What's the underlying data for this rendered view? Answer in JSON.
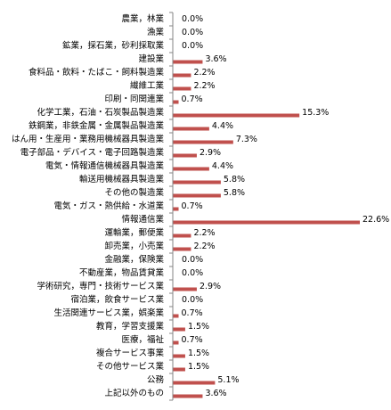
{
  "chart_data": {
    "type": "bar",
    "orientation": "horizontal",
    "categories": [
      "農業，林業",
      "漁業",
      "鉱業，採石業，砂利採取業",
      "建設業",
      "食料品・飲料・たばこ・飼料製造業",
      "繊維工業",
      "印刷・同関連業",
      "化学工業，石油・石炭製品製造業",
      "鉄鋼業，非鉄金属・金属製品製造業",
      "はん用・生産用・業務用機械器具製造業",
      "電子部品・デバイス・電子回路製造業",
      "電気・情報通信機械器具製造業",
      "輸送用機械器具製造業",
      "その他の製造業",
      "電気・ガス・熱供給・水道業",
      "情報通信業",
      "運輸業，郵便業",
      "卸売業，小売業",
      "金融業，保険業",
      "不動産業，物品賃貸業",
      "学術研究，専門・技術サービス業",
      "宿泊業，飲食サービス業",
      "生活関連サービス業，娯楽業",
      "教育，学習支援業",
      "医療，福祉",
      "複合サービス事業",
      "その他サービス業",
      "公務",
      "上記以外のもの"
    ],
    "values": [
      0.0,
      0.0,
      0.0,
      3.6,
      2.2,
      2.2,
      0.7,
      15.3,
      4.4,
      7.3,
      2.9,
      4.4,
      5.8,
      5.8,
      0.7,
      22.6,
      2.2,
      2.2,
      0.0,
      0.0,
      2.9,
      0.0,
      0.7,
      1.5,
      0.7,
      1.5,
      1.5,
      5.1,
      3.6
    ],
    "value_labels": [
      "0.0%",
      "0.0%",
      "0.0%",
      "3.6%",
      "2.2%",
      "2.2%",
      "0.7%",
      "15.3%",
      "4.4%",
      "7.3%",
      "2.9%",
      "4.4%",
      "5.8%",
      "5.8%",
      "0.7%",
      "22.6%",
      "2.2%",
      "2.2%",
      "0.0%",
      "0.0%",
      "2.9%",
      "0.0%",
      "0.7%",
      "1.5%",
      "0.7%",
      "1.5%",
      "1.5%",
      "5.1%",
      "3.6%"
    ],
    "title": "",
    "xlabel": "",
    "ylabel": "",
    "xlim": [
      0,
      22.6
    ],
    "grid": false,
    "legend": "none",
    "bar_color": "#c0504d",
    "axis_color": "#868686"
  }
}
